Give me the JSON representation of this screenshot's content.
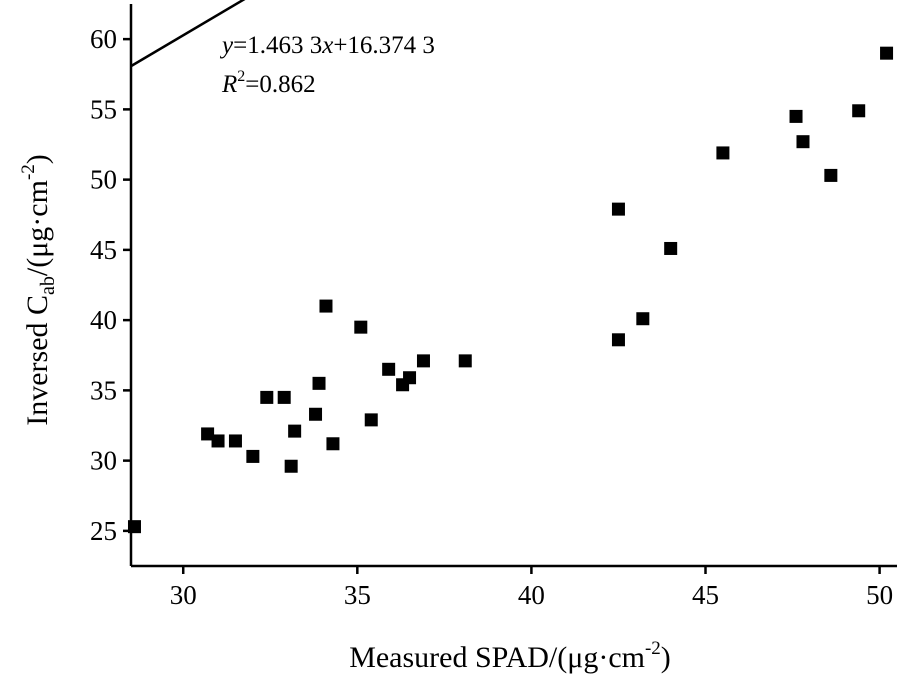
{
  "chart_data": {
    "type": "scatter",
    "xlabel": "Measured SPAD/(μg·cm",
    "xlabel_sup": "-2",
    "xlabel_close": ")",
    "ylabel_main": "Inversed C",
    "ylabel_sub": "ab",
    "ylabel_rest": "/(μg·cm",
    "ylabel_sup": "-2",
    "ylabel_close": ")",
    "xlim": [
      28.5,
      50.5
    ],
    "ylim": [
      22.5,
      62.5
    ],
    "xticks": [
      30,
      35,
      40,
      45,
      50
    ],
    "yticks": [
      25,
      30,
      35,
      40,
      45,
      50,
      55,
      60
    ],
    "grid": false,
    "legend": "none",
    "marker": "square",
    "marker_color": "#000000",
    "line_color": "#000000",
    "fit": {
      "slope": 1.4633,
      "intercept": 16.3743,
      "x_range": [
        28.5,
        50.2
      ]
    },
    "equation_y": "y",
    "equation_rest": "=1.463 3",
    "equation_x": "x",
    "equation_tail": "+16.374 3",
    "r2_label": "R",
    "r2_sup": "2",
    "r2_value": "=0.862",
    "points": [
      {
        "x": 28.6,
        "y": 25.3
      },
      {
        "x": 30.7,
        "y": 31.9
      },
      {
        "x": 31.0,
        "y": 31.4
      },
      {
        "x": 31.5,
        "y": 31.4
      },
      {
        "x": 32.0,
        "y": 30.3
      },
      {
        "x": 32.4,
        "y": 34.5
      },
      {
        "x": 32.9,
        "y": 34.5
      },
      {
        "x": 33.1,
        "y": 29.6
      },
      {
        "x": 33.2,
        "y": 32.1
      },
      {
        "x": 33.8,
        "y": 33.3
      },
      {
        "x": 33.9,
        "y": 35.5
      },
      {
        "x": 34.1,
        "y": 41.0
      },
      {
        "x": 34.3,
        "y": 31.2
      },
      {
        "x": 35.1,
        "y": 39.5
      },
      {
        "x": 35.4,
        "y": 32.9
      },
      {
        "x": 35.9,
        "y": 36.5
      },
      {
        "x": 36.3,
        "y": 35.4
      },
      {
        "x": 36.5,
        "y": 35.9
      },
      {
        "x": 36.9,
        "y": 37.1
      },
      {
        "x": 38.1,
        "y": 37.1
      },
      {
        "x": 42.5,
        "y": 47.9
      },
      {
        "x": 42.5,
        "y": 38.6
      },
      {
        "x": 43.2,
        "y": 40.1
      },
      {
        "x": 44.0,
        "y": 45.1
      },
      {
        "x": 45.5,
        "y": 51.9
      },
      {
        "x": 47.6,
        "y": 54.5
      },
      {
        "x": 47.8,
        "y": 52.7
      },
      {
        "x": 48.6,
        "y": 50.3
      },
      {
        "x": 49.4,
        "y": 54.9
      },
      {
        "x": 50.2,
        "y": 59.0
      }
    ]
  }
}
